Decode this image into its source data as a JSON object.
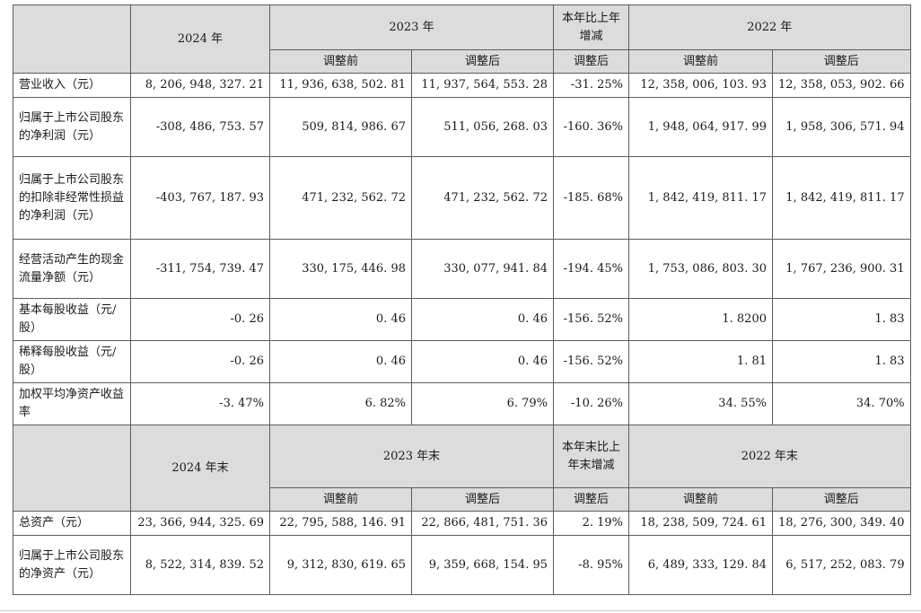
{
  "header1": {
    "year_2024": "2024 年",
    "year_2023": "2023 年",
    "change": "本年比上年增减",
    "year_2022": "2022 年",
    "before_adj": "调整前",
    "after_adj": "调整后"
  },
  "rows1": [
    {
      "label": "营业收入（元）",
      "v2024": "8, 206, 948, 327. 21",
      "v2023_before": "11, 936, 638, 502. 81",
      "v2023_after": "11, 937, 564, 553. 28",
      "change": "-31. 25%",
      "v2022_before": "12, 358, 006, 103. 93",
      "v2022_after": "12, 358, 053, 902. 66"
    },
    {
      "label": "归属于上市公司股东的净利润（元）",
      "v2024": "-308, 486, 753. 57",
      "v2023_before": "509, 814, 986. 67",
      "v2023_after": "511, 056, 268. 03",
      "change": "-160. 36%",
      "v2022_before": "1, 948, 064, 917. 99",
      "v2022_after": "1, 958, 306, 571. 94"
    },
    {
      "label": "归属于上市公司股东的扣除非经常性损益的净利润（元）",
      "v2024": "-403, 767, 187. 93",
      "v2023_before": "471, 232, 562. 72",
      "v2023_after": "471, 232, 562. 72",
      "change": "-185. 68%",
      "v2022_before": "1, 842, 419, 811. 17",
      "v2022_after": "1, 842, 419, 811. 17"
    },
    {
      "label": "经营活动产生的现金流量净额（元）",
      "v2024": "-311, 754, 739. 47",
      "v2023_before": "330, 175, 446. 98",
      "v2023_after": "330, 077, 941. 84",
      "change": "-194. 45%",
      "v2022_before": "1, 753, 086, 803. 30",
      "v2022_after": "1, 767, 236, 900. 31"
    },
    {
      "label": "基本每股收益（元/股）",
      "v2024": "-0. 26",
      "v2023_before": "0. 46",
      "v2023_after": "0. 46",
      "change": "-156. 52%",
      "v2022_before": "1. 8200",
      "v2022_after": "1. 83"
    },
    {
      "label": "稀释每股收益（元/股）",
      "v2024": "-0. 26",
      "v2023_before": "0. 46",
      "v2023_after": "0. 46",
      "change": "-156. 52%",
      "v2022_before": "1. 81",
      "v2022_after": "1. 83"
    },
    {
      "label": "加权平均净资产收益率",
      "v2024": "-3. 47%",
      "v2023_before": "6. 82%",
      "v2023_after": "6. 79%",
      "change": "-10. 26%",
      "v2022_before": "34. 55%",
      "v2022_after": "34. 70%"
    }
  ],
  "header2": {
    "year_2024": "2024 年末",
    "year_2023": "2023 年末",
    "change": "本年末比上年末增减",
    "year_2022": "2022 年末",
    "before_adj": "调整前",
    "after_adj": "调整后"
  },
  "rows2": [
    {
      "label": "总资产（元）",
      "v2024": "23, 366, 944, 325. 69",
      "v2023_before": "22, 795, 588, 146. 91",
      "v2023_after": "22, 866, 481, 751. 36",
      "change": "2. 19%",
      "v2022_before": "18, 238, 509, 724. 61",
      "v2022_after": "18, 276, 300, 349. 40"
    },
    {
      "label": "归属于上市公司股东的净资产（元）",
      "v2024": "8, 522, 314, 839. 52",
      "v2023_before": "9, 312, 830, 619. 65",
      "v2023_after": "9, 359, 668, 154. 95",
      "change": "-8. 95%",
      "v2022_before": "6, 489, 333, 129. 84",
      "v2022_after": "6, 517, 252, 083. 79"
    }
  ]
}
